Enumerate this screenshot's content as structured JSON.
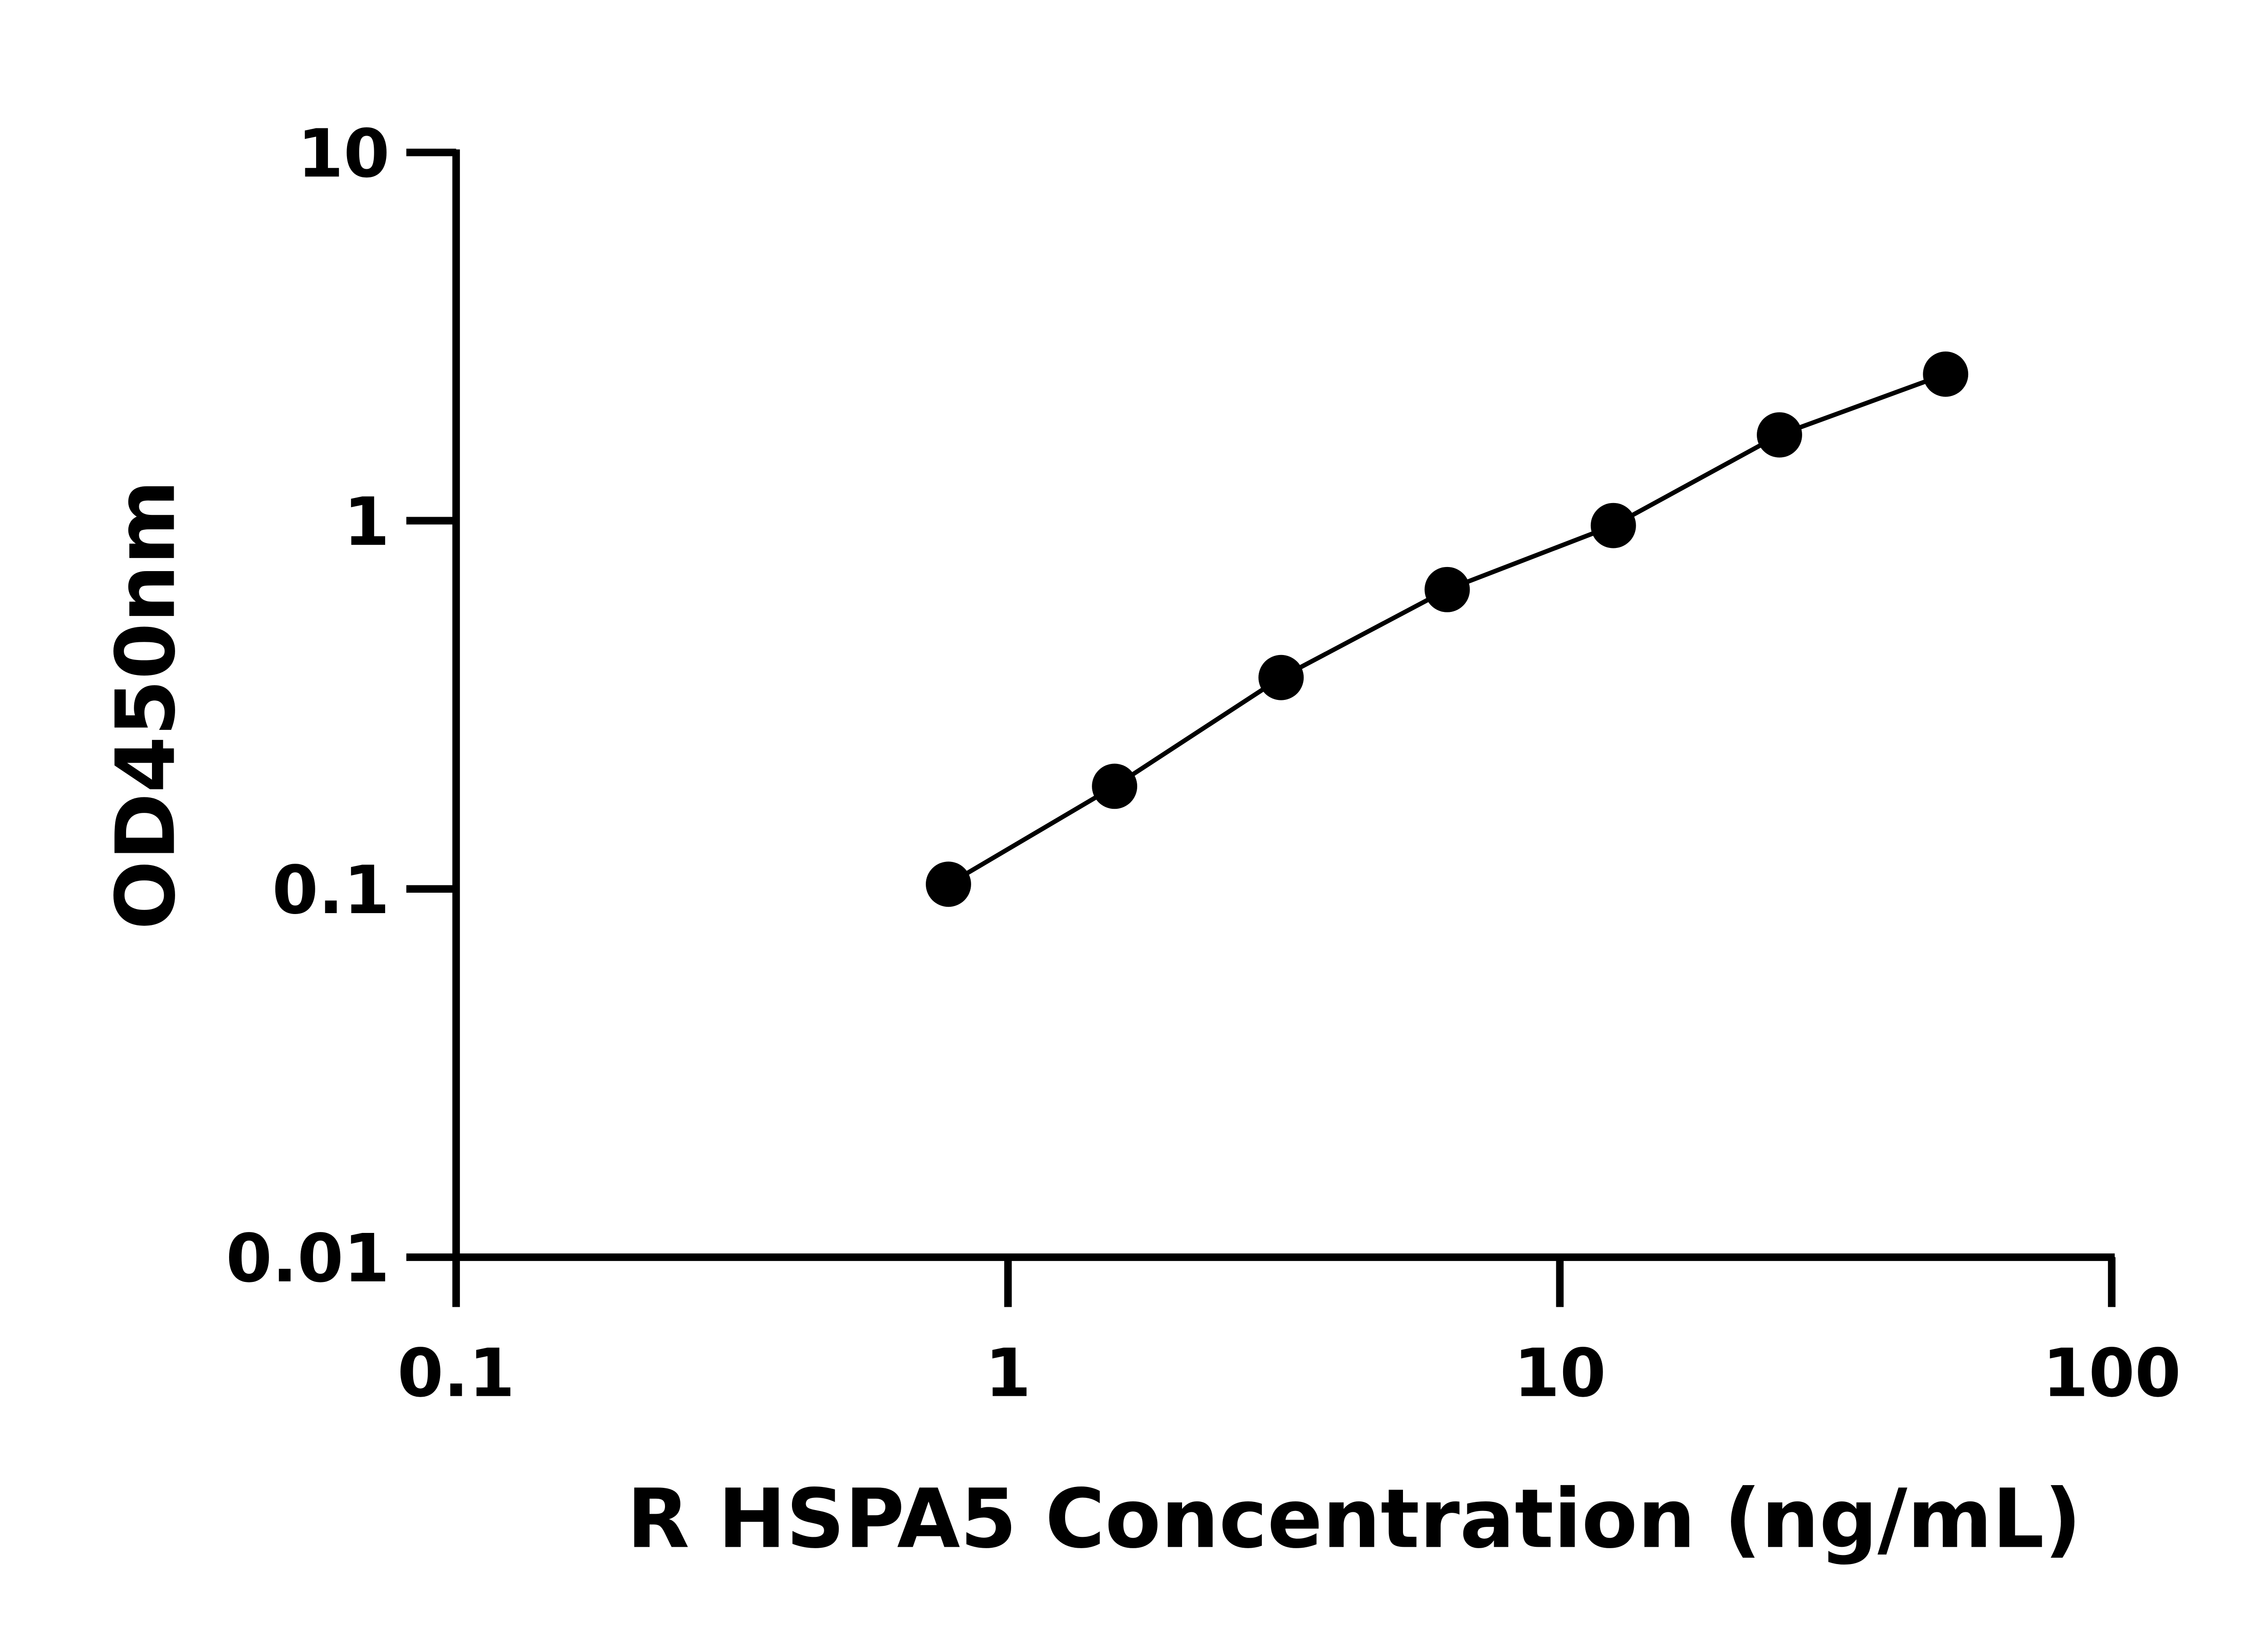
{
  "chart_data": {
    "type": "scatter",
    "title": "",
    "xlabel": "R HSPA5 Concentration (ng/mL)",
    "ylabel": "OD450nm",
    "x_scale": "log",
    "y_scale": "log",
    "xlim": [
      0.1,
      100
    ],
    "ylim": [
      0.01,
      10
    ],
    "x_ticks": [
      "0.1",
      "1",
      "10",
      "100"
    ],
    "y_ticks": [
      "0.01",
      "0.1",
      "1",
      "10"
    ],
    "grid": false,
    "legend": "none",
    "fit_line": true,
    "marker_color": "#000000",
    "series": [
      {
        "x": [
          0.78,
          1.56,
          3.125,
          6.25,
          12.5,
          25,
          50
        ],
        "y": [
          0.103,
          0.19,
          0.375,
          0.65,
          0.97,
          1.71,
          2.5
        ]
      }
    ]
  }
}
